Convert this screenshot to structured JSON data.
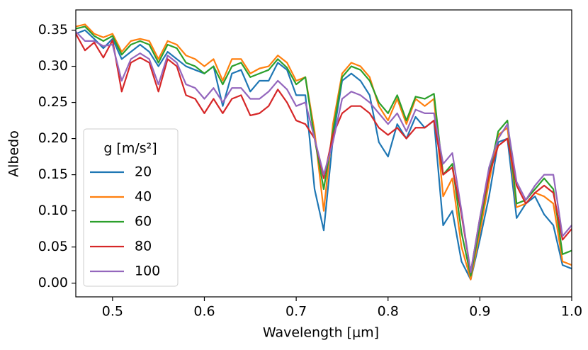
{
  "chart_data": {
    "type": "line",
    "xlabel": "Wavelength [μm]",
    "ylabel": "Albedo",
    "legend_title": "g [m/s²]",
    "legend_position": "lower left",
    "x": [
      0.46,
      0.47,
      0.48,
      0.49,
      0.5,
      0.51,
      0.52,
      0.53,
      0.54,
      0.55,
      0.56,
      0.57,
      0.58,
      0.59,
      0.6,
      0.61,
      0.62,
      0.63,
      0.64,
      0.65,
      0.66,
      0.67,
      0.68,
      0.69,
      0.7,
      0.71,
      0.72,
      0.73,
      0.74,
      0.75,
      0.76,
      0.77,
      0.78,
      0.79,
      0.8,
      0.81,
      0.82,
      0.83,
      0.84,
      0.85,
      0.86,
      0.87,
      0.88,
      0.89,
      0.9,
      0.91,
      0.92,
      0.93,
      0.94,
      0.95,
      0.96,
      0.97,
      0.98,
      0.99,
      1.0
    ],
    "series": [
      {
        "name": "20",
        "color": "#1f77b4",
        "values": [
          0.345,
          0.35,
          0.338,
          0.325,
          0.338,
          0.31,
          0.32,
          0.33,
          0.32,
          0.3,
          0.32,
          0.31,
          0.3,
          0.295,
          0.29,
          0.3,
          0.245,
          0.29,
          0.295,
          0.265,
          0.28,
          0.28,
          0.305,
          0.295,
          0.26,
          0.26,
          0.13,
          0.073,
          0.2,
          0.28,
          0.29,
          0.28,
          0.26,
          0.195,
          0.175,
          0.22,
          0.2,
          0.23,
          0.215,
          0.225,
          0.08,
          0.1,
          0.03,
          0.005,
          0.06,
          0.12,
          0.195,
          0.2,
          0.09,
          0.11,
          0.12,
          0.095,
          0.08,
          0.025,
          0.02
        ]
      },
      {
        "name": "40",
        "color": "#ff7f0e",
        "values": [
          0.355,
          0.358,
          0.345,
          0.34,
          0.345,
          0.32,
          0.335,
          0.338,
          0.335,
          0.31,
          0.335,
          0.33,
          0.315,
          0.31,
          0.3,
          0.31,
          0.28,
          0.31,
          0.31,
          0.29,
          0.297,
          0.3,
          0.315,
          0.305,
          0.28,
          0.285,
          0.21,
          0.1,
          0.22,
          0.29,
          0.305,
          0.3,
          0.285,
          0.245,
          0.225,
          0.255,
          0.22,
          0.255,
          0.245,
          0.255,
          0.12,
          0.145,
          0.05,
          0.005,
          0.07,
          0.14,
          0.205,
          0.215,
          0.105,
          0.11,
          0.125,
          0.12,
          0.11,
          0.03,
          0.025
        ]
      },
      {
        "name": "60",
        "color": "#2ca02c",
        "values": [
          0.352,
          0.355,
          0.342,
          0.335,
          0.342,
          0.316,
          0.33,
          0.335,
          0.33,
          0.305,
          0.33,
          0.325,
          0.305,
          0.3,
          0.29,
          0.3,
          0.275,
          0.3,
          0.305,
          0.285,
          0.29,
          0.295,
          0.31,
          0.298,
          0.275,
          0.285,
          0.2,
          0.13,
          0.21,
          0.285,
          0.3,
          0.295,
          0.28,
          0.25,
          0.235,
          0.26,
          0.225,
          0.258,
          0.255,
          0.262,
          0.15,
          0.165,
          0.07,
          0.01,
          0.08,
          0.15,
          0.21,
          0.225,
          0.11,
          0.115,
          0.13,
          0.145,
          0.13,
          0.04,
          0.045
        ]
      },
      {
        "name": "80",
        "color": "#d62728",
        "values": [
          0.345,
          0.322,
          0.333,
          0.312,
          0.336,
          0.265,
          0.305,
          0.312,
          0.305,
          0.265,
          0.31,
          0.3,
          0.26,
          0.255,
          0.235,
          0.255,
          0.235,
          0.255,
          0.26,
          0.232,
          0.235,
          0.245,
          0.268,
          0.25,
          0.225,
          0.22,
          0.2,
          0.145,
          0.205,
          0.235,
          0.245,
          0.245,
          0.235,
          0.215,
          0.205,
          0.215,
          0.2,
          0.215,
          0.215,
          0.225,
          0.15,
          0.16,
          0.095,
          0.015,
          0.09,
          0.15,
          0.19,
          0.2,
          0.135,
          0.11,
          0.125,
          0.135,
          0.125,
          0.06,
          0.075
        ]
      },
      {
        "name": "100",
        "color": "#9467bd",
        "values": [
          0.348,
          0.335,
          0.335,
          0.328,
          0.33,
          0.28,
          0.31,
          0.318,
          0.31,
          0.275,
          0.315,
          0.305,
          0.275,
          0.27,
          0.255,
          0.27,
          0.25,
          0.27,
          0.27,
          0.255,
          0.255,
          0.265,
          0.28,
          0.268,
          0.245,
          0.25,
          0.2,
          0.15,
          0.195,
          0.255,
          0.265,
          0.26,
          0.25,
          0.235,
          0.22,
          0.235,
          0.21,
          0.24,
          0.235,
          0.235,
          0.165,
          0.18,
          0.1,
          0.015,
          0.09,
          0.16,
          0.2,
          0.22,
          0.14,
          0.115,
          0.135,
          0.15,
          0.15,
          0.065,
          0.08
        ]
      }
    ],
    "xlim": [
      0.46,
      1.0
    ],
    "ylim": [
      -0.019,
      0.378
    ],
    "xticks": [
      0.5,
      0.6,
      0.7,
      0.8,
      0.9,
      {
        "value": 1.0,
        "label": "1.0"
      }
    ],
    "yticks": [
      {
        "value": 0,
        "label": "0.00"
      },
      {
        "value": 0.05,
        "label": "0.05"
      },
      {
        "value": 0.1,
        "label": "0.10"
      },
      {
        "value": 0.15,
        "label": "0.15"
      },
      {
        "value": 0.2,
        "label": "0.20"
      },
      {
        "value": 0.25,
        "label": "0.25"
      },
      {
        "value": 0.3,
        "label": "0.30"
      },
      {
        "value": 0.35,
        "label": "0.35"
      }
    ],
    "grid": false
  }
}
